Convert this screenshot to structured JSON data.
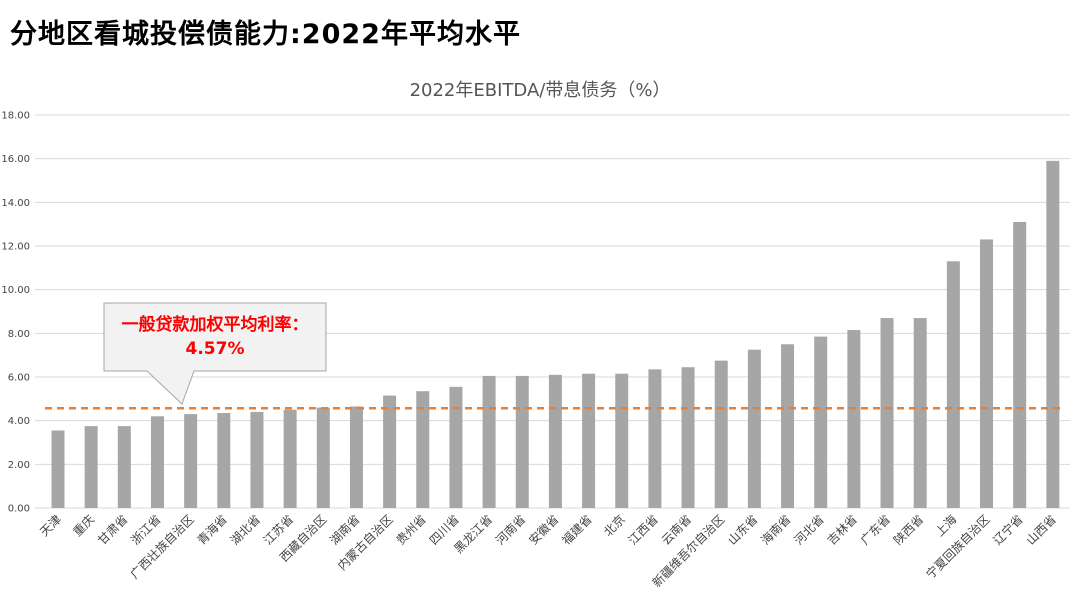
{
  "page": {
    "title": "分地区看城投偿债能力:2022年平均水平"
  },
  "chart_data": {
    "type": "bar",
    "title": "2022年EBITDA/带息债务（%）",
    "categories": [
      "天津",
      "重庆",
      "甘肃省",
      "浙江省",
      "广西壮族自治区",
      "青海省",
      "湖北省",
      "江苏省",
      "西藏自治区",
      "湖南省",
      "内蒙古自治区",
      "贵州省",
      "四川省",
      "黑龙江省",
      "河南省",
      "安徽省",
      "福建省",
      "北京",
      "江西省",
      "云南省",
      "新疆维吾尔自治区",
      "山东省",
      "海南省",
      "河北省",
      "吉林省",
      "广东省",
      "陕西省",
      "上海",
      "宁夏回族自治区",
      "辽宁省",
      "山西省"
    ],
    "values": [
      3.55,
      3.75,
      3.75,
      4.2,
      4.3,
      4.35,
      4.4,
      4.5,
      4.6,
      4.65,
      5.15,
      5.35,
      5.55,
      6.05,
      6.05,
      6.1,
      6.15,
      6.15,
      6.35,
      6.45,
      6.75,
      7.25,
      7.5,
      7.85,
      8.15,
      8.7,
      8.7,
      11.3,
      12.3,
      13.1,
      15.9
    ],
    "ylim": [
      0,
      18
    ],
    "yticks": [
      "0.00",
      "2.00",
      "4.00",
      "6.00",
      "8.00",
      "10.00",
      "12.00",
      "14.00",
      "16.00",
      "18.00"
    ],
    "grid": true,
    "bar_color": "#a6a6a6",
    "reference_line": {
      "value": 4.57,
      "color": "#ed7d31",
      "label_line1": "一般贷款加权平均利率：",
      "label_line2": "4.57%",
      "label_color": "#ff0000"
    }
  }
}
